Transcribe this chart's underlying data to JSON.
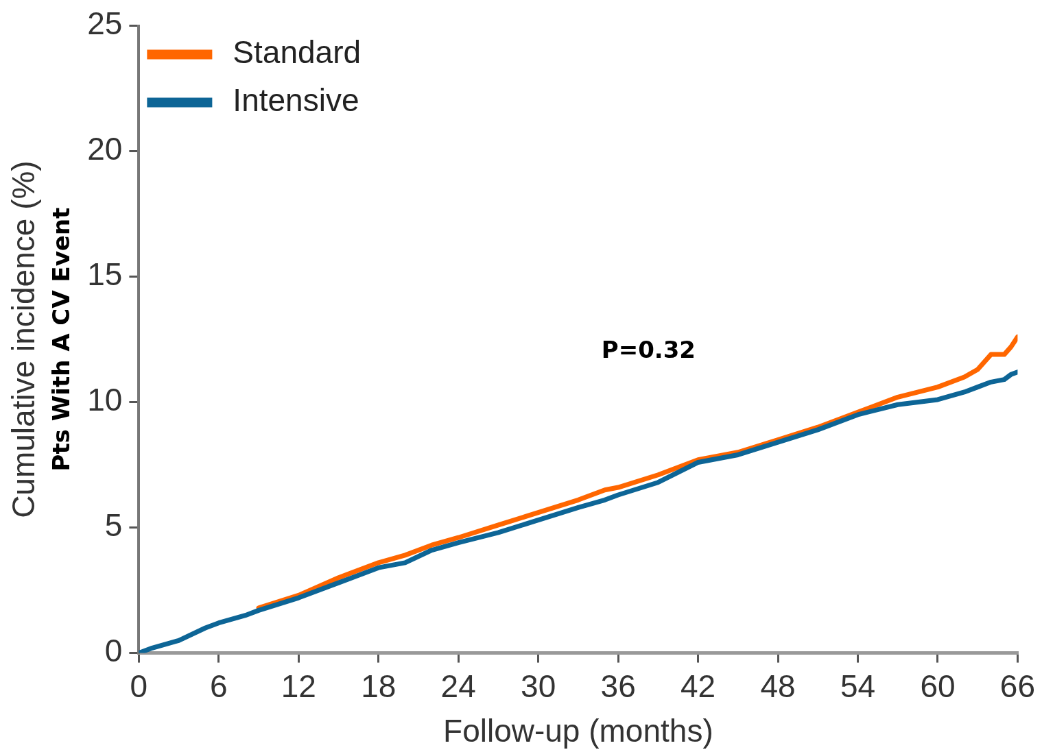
{
  "chart_data": {
    "type": "line",
    "ylabel": "Cumulative incidence (%)",
    "xlabel": "Follow-up (months)",
    "annotations": [
      "Pts With A CV Event",
      "P=0.32"
    ],
    "x": [
      0,
      1,
      3,
      5,
      6,
      8,
      9,
      12,
      15,
      18,
      20,
      22,
      24,
      27,
      30,
      33,
      35,
      36,
      39,
      42,
      45,
      48,
      51,
      54,
      57,
      60,
      62,
      63,
      64,
      65,
      65.5,
      66
    ],
    "series": [
      {
        "name": "Standard",
        "color": "#ff6600",
        "values": [
          null,
          null,
          null,
          null,
          null,
          null,
          1.8,
          2.3,
          3.0,
          3.6,
          3.9,
          4.3,
          4.6,
          5.1,
          5.6,
          6.1,
          6.5,
          6.6,
          7.1,
          7.7,
          8.0,
          8.5,
          9.0,
          9.6,
          10.2,
          10.6,
          11.0,
          11.3,
          11.9,
          11.9,
          12.2,
          12.6
        ]
      },
      {
        "name": "Intensive",
        "color": "#0d6596",
        "values": [
          0,
          0.2,
          0.5,
          1.0,
          1.2,
          1.5,
          1.7,
          2.2,
          2.8,
          3.4,
          3.6,
          4.1,
          4.4,
          4.8,
          5.3,
          5.8,
          6.1,
          6.3,
          6.8,
          7.6,
          7.9,
          8.4,
          8.9,
          9.5,
          9.9,
          10.1,
          10.4,
          10.6,
          10.8,
          10.9,
          11.1,
          11.2
        ]
      }
    ],
    "xlim": [
      0,
      66
    ],
    "xticks": [
      0,
      6,
      12,
      18,
      24,
      30,
      36,
      42,
      48,
      54,
      60,
      66
    ],
    "ylim": [
      0,
      25
    ],
    "yticks": [
      0,
      5,
      10,
      15,
      20,
      25
    ],
    "grid": false,
    "legend": "top left",
    "marker": "none",
    "line_style": "solid"
  }
}
